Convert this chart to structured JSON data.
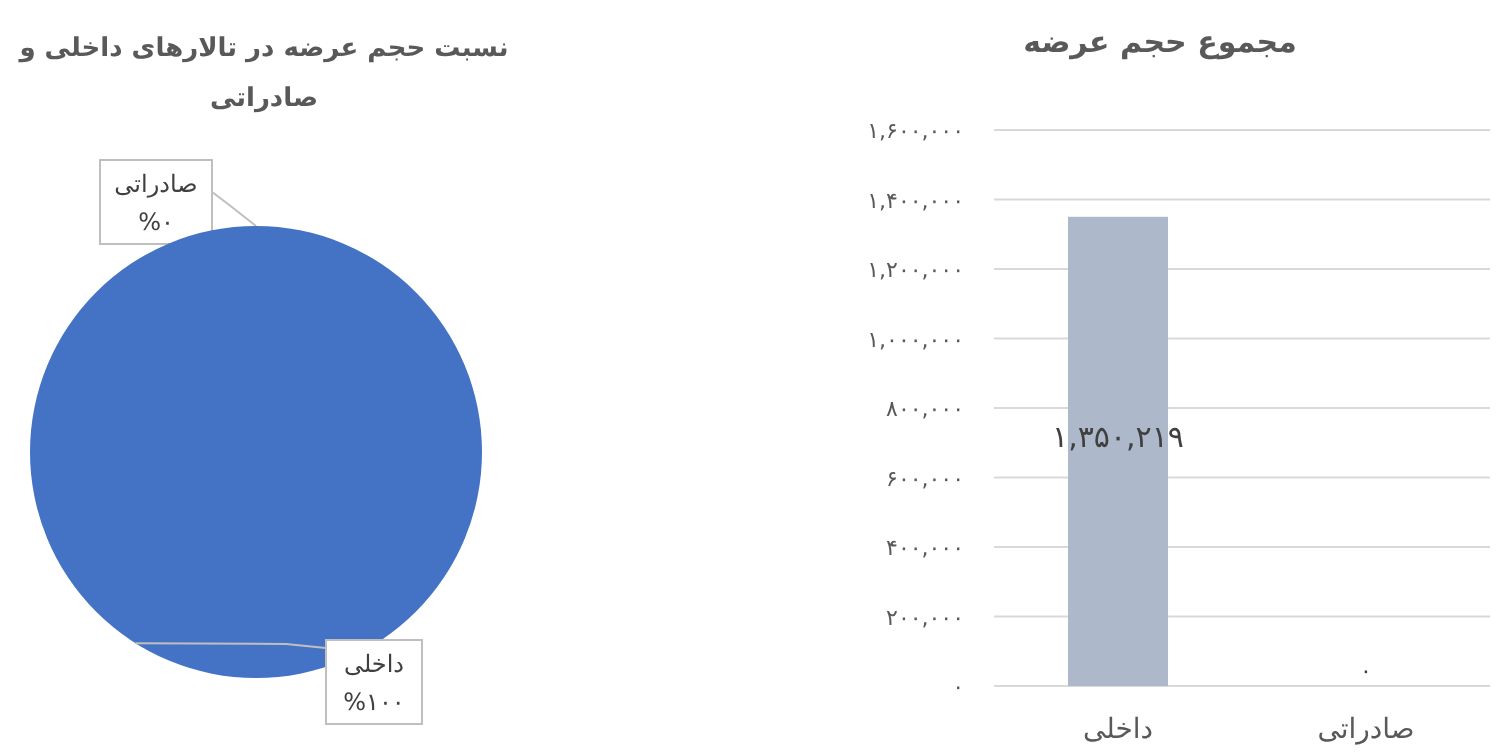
{
  "chart_data": [
    {
      "type": "pie",
      "title": "نسبت حجم عرضه در تالارهای داخلی و صادراتی",
      "categories": [
        "صادراتی",
        "داخلی"
      ],
      "values": [
        0,
        100
      ],
      "colors": [
        "#4472c4",
        "#4472c4"
      ],
      "value_labels": [
        "%۰",
        "%۱۰۰"
      ]
    },
    {
      "type": "bar",
      "title": "مجموع حجم عرضه",
      "categories": [
        "داخلی",
        "صادراتی"
      ],
      "values": [
        1350219,
        0
      ],
      "color": "#adb9ca",
      "value_labels": [
        "۱,۳۵۰,۲۱۹",
        "۰"
      ],
      "ylim": [
        0,
        1600000
      ],
      "yticks": [
        {
          "value": 0,
          "label": "۰"
        },
        {
          "value": 200000,
          "label": "۲۰۰,۰۰۰"
        },
        {
          "value": 400000,
          "label": "۴۰۰,۰۰۰"
        },
        {
          "value": 600000,
          "label": "۶۰۰,۰۰۰"
        },
        {
          "value": 800000,
          "label": "۸۰۰,۰۰۰"
        },
        {
          "value": 1000000,
          "label": "۱,۰۰۰,۰۰۰"
        },
        {
          "value": 1200000,
          "label": "۱,۲۰۰,۰۰۰"
        },
        {
          "value": 1400000,
          "label": "۱,۴۰۰,۰۰۰"
        },
        {
          "value": 1600000,
          "label": "۱,۶۰۰,۰۰۰"
        }
      ],
      "grid": "y"
    }
  ]
}
